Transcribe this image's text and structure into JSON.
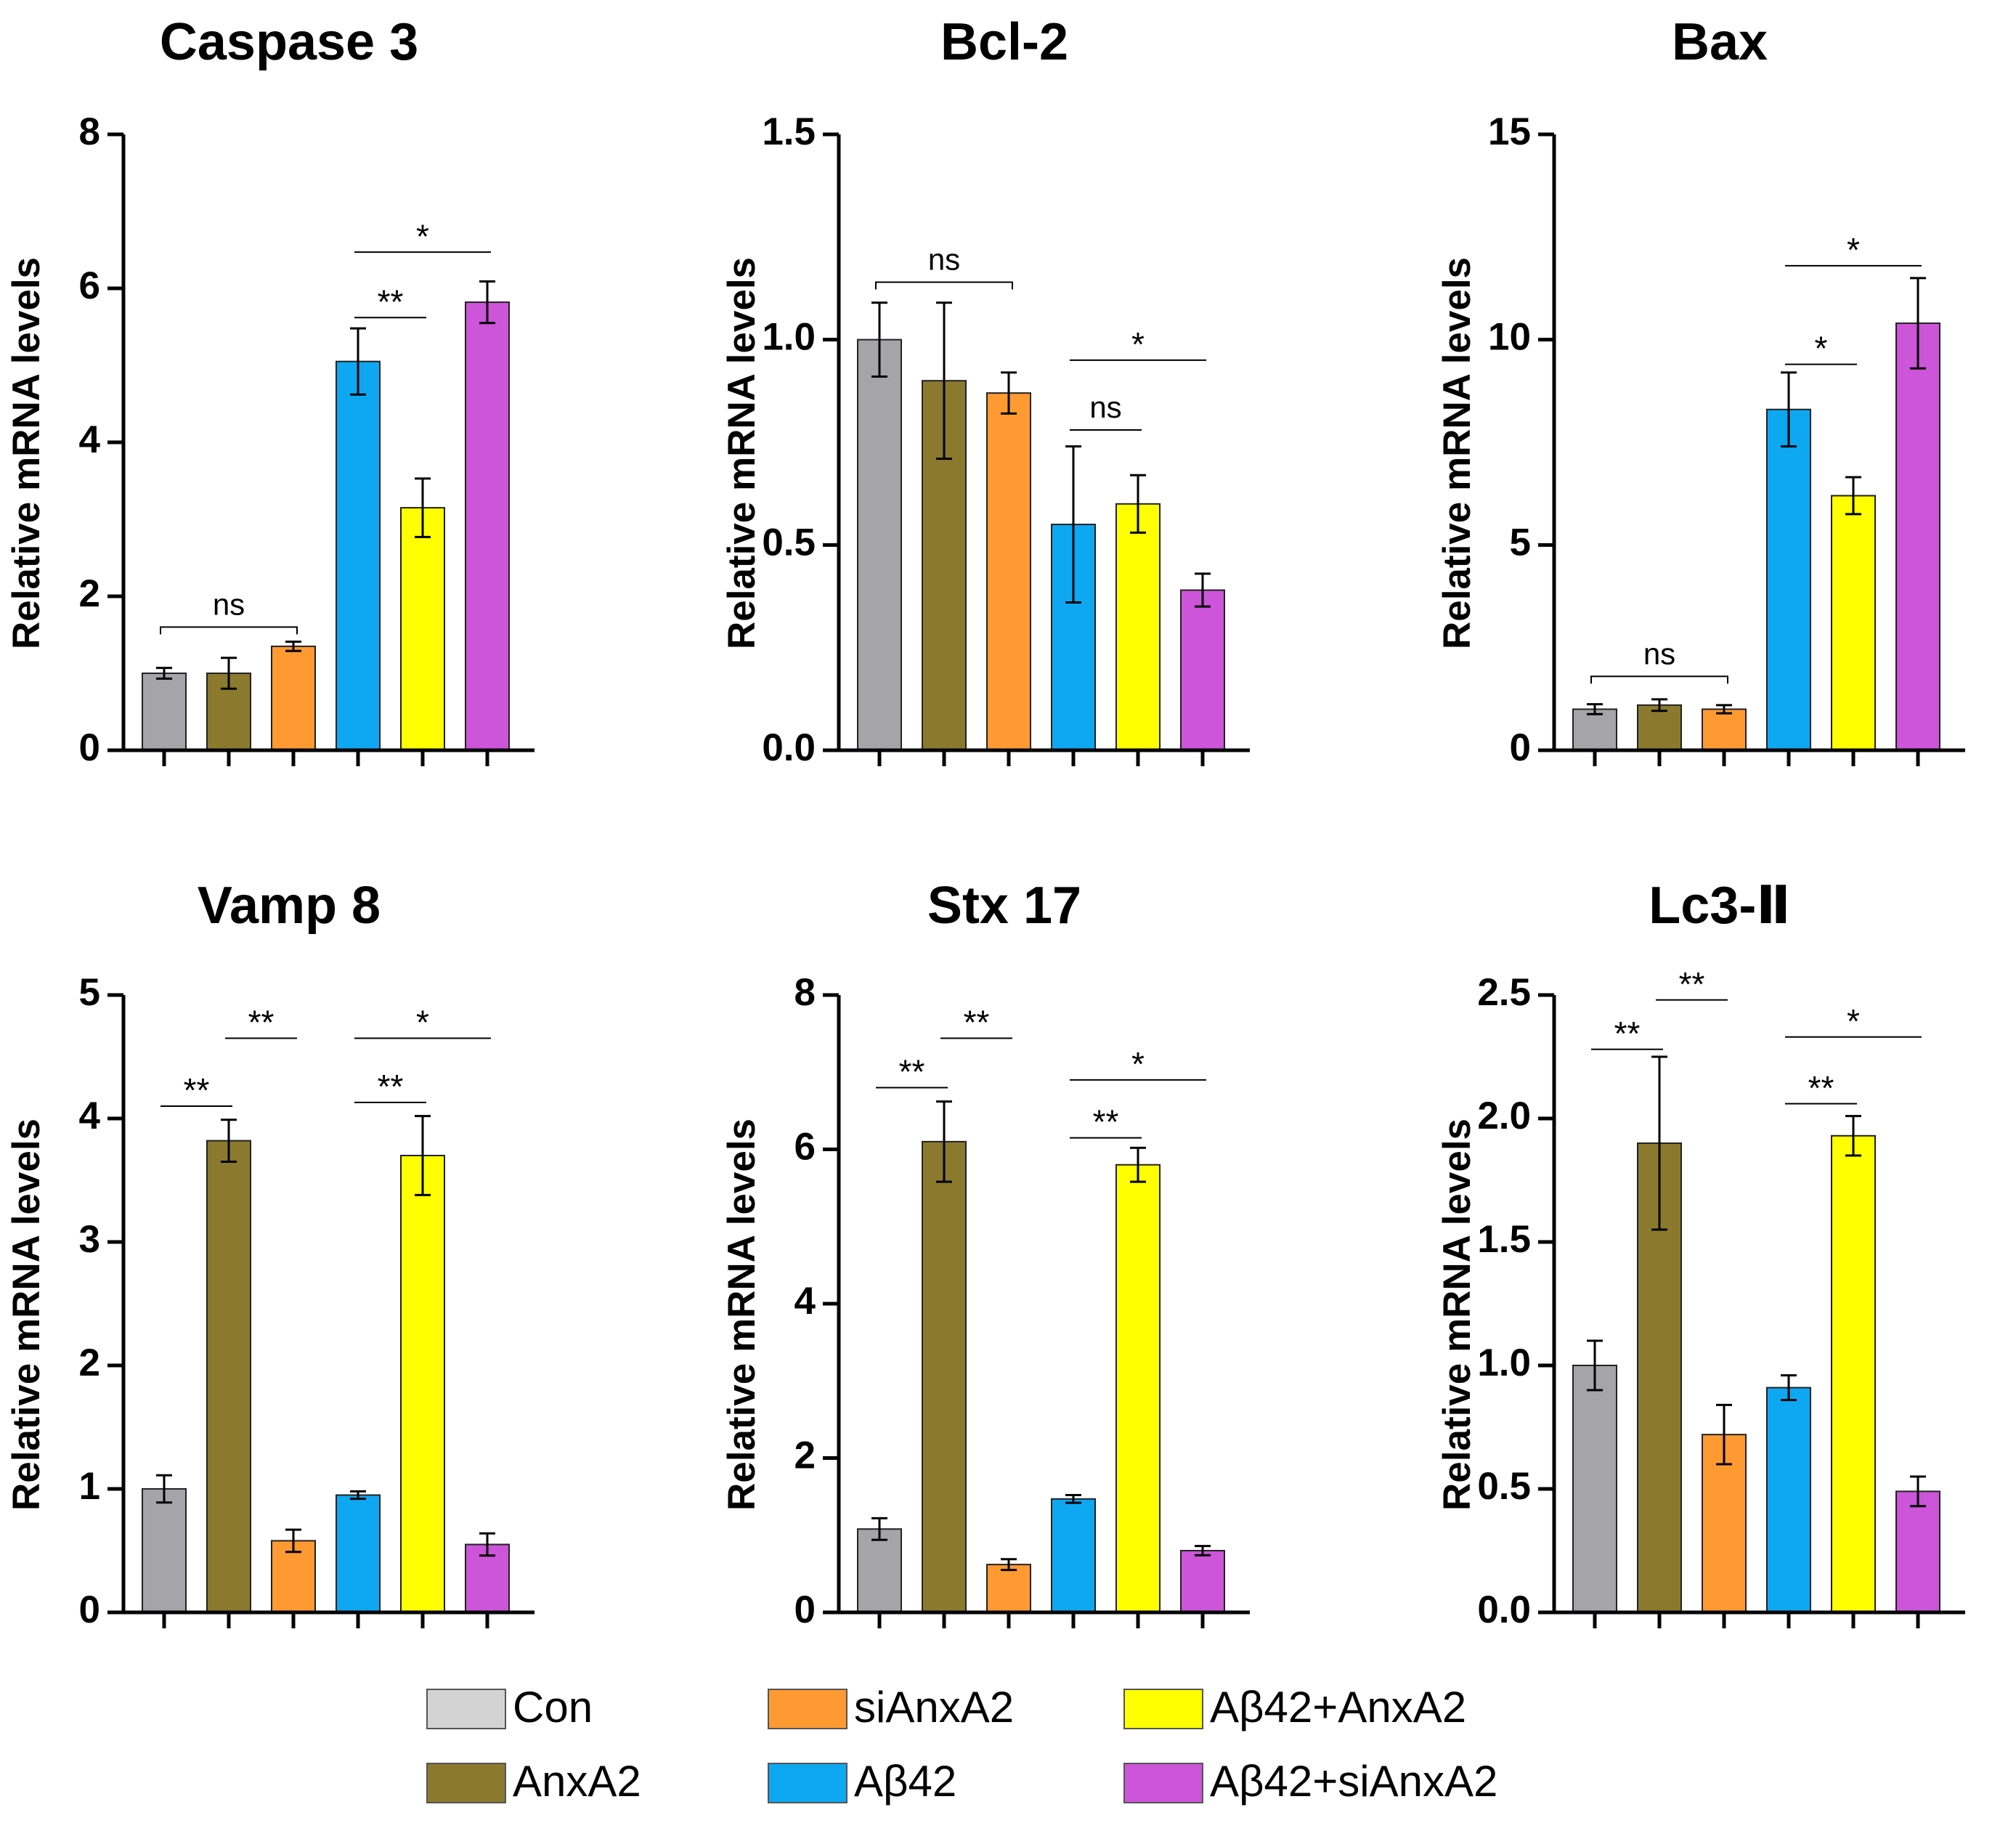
{
  "legend": [
    {
      "key": "con",
      "label": "Con",
      "color": "#d3d3d3"
    },
    {
      "key": "anxa2",
      "label": "AnxA2",
      "color": "#8b7a2e"
    },
    {
      "key": "sianxa2",
      "label": "siAnxA2",
      "color": "#ff9a33"
    },
    {
      "key": "ab42",
      "label": "Aβ42",
      "color": "#0ea8f2"
    },
    {
      "key": "ab42_anxa2",
      "label": "Aβ42+AnxA2",
      "color": "#ffff00"
    },
    {
      "key": "ab42_sianxa2",
      "label": "Aβ42+siAnxA2",
      "color": "#cc55d9"
    }
  ],
  "colors": {
    "con_panel_fill": "#a5a5a9",
    "axis": "#000000",
    "bar_stroke": "#222222"
  },
  "chart_data": [
    {
      "type": "bar",
      "title": "Caspase 3",
      "ylabel": "Relative mRNA levels",
      "xlabel": "",
      "ylim": [
        0,
        8
      ],
      "yticks": [
        0,
        2,
        4,
        6,
        8
      ],
      "tick_labels": [
        "0",
        "2",
        "4",
        "6",
        "8"
      ],
      "categories": [
        "Con",
        "AnxA2",
        "siAnxA2",
        "Aβ42",
        "Aβ42+AnxA2",
        "Aβ42+siAnxA2"
      ],
      "values": [
        1.0,
        1.0,
        1.35,
        5.05,
        3.15,
        5.82
      ],
      "errors": [
        0.07,
        0.2,
        0.06,
        0.43,
        0.38,
        0.27
      ],
      "significance": [
        {
          "from": 0,
          "to": 2,
          "label": "ns",
          "y": 1.6
        },
        {
          "from": 3,
          "to": 4,
          "label": "**",
          "y": 5.62
        },
        {
          "from": 3,
          "to": 5,
          "label": "*",
          "y": 6.47
        }
      ]
    },
    {
      "type": "bar",
      "title": "Bcl-2",
      "ylabel": "Relative mRNA levels",
      "xlabel": "",
      "ylim": [
        0,
        1.5
      ],
      "yticks": [
        0,
        0.5,
        1.0,
        1.5
      ],
      "tick_labels": [
        "0.0",
        "0.5",
        "1.0",
        "1.5"
      ],
      "categories": [
        "Con",
        "AnxA2",
        "siAnxA2",
        "Aβ42",
        "Aβ42+AnxA2",
        "Aβ42+siAnxA2"
      ],
      "values": [
        1.0,
        0.9,
        0.87,
        0.55,
        0.6,
        0.39
      ],
      "errors": [
        0.09,
        0.19,
        0.05,
        0.19,
        0.07,
        0.04
      ],
      "significance": [
        {
          "from": 0,
          "to": 2,
          "label": "ns",
          "y": 1.14
        },
        {
          "from": 3,
          "to": 4,
          "label": "ns",
          "y": 0.78
        },
        {
          "from": 3,
          "to": 5,
          "label": "*",
          "y": 0.95
        }
      ]
    },
    {
      "type": "bar",
      "title": "Bax",
      "ylabel": "Relative mRNA levels",
      "xlabel": "",
      "ylim": [
        0,
        15
      ],
      "yticks": [
        0,
        5,
        10,
        15
      ],
      "tick_labels": [
        "0",
        "5",
        "10",
        "15"
      ],
      "categories": [
        "Con",
        "AnxA2",
        "siAnxA2",
        "Aβ42",
        "Aβ42+AnxA2",
        "Aβ42+siAnxA2"
      ],
      "values": [
        1.0,
        1.1,
        1.0,
        8.3,
        6.2,
        10.4
      ],
      "errors": [
        0.12,
        0.14,
        0.1,
        0.9,
        0.45,
        1.1
      ],
      "significance": [
        {
          "from": 0,
          "to": 2,
          "label": "ns",
          "y": 1.8
        },
        {
          "from": 3,
          "to": 4,
          "label": "*",
          "y": 9.4
        },
        {
          "from": 3,
          "to": 5,
          "label": "*",
          "y": 11.8
        }
      ]
    },
    {
      "type": "bar",
      "title": "Vamp 8",
      "ylabel": "Relative mRNA levels",
      "xlabel": "",
      "ylim": [
        0,
        5
      ],
      "yticks": [
        0,
        1,
        2,
        3,
        4,
        5
      ],
      "tick_labels": [
        "0",
        "1",
        "2",
        "3",
        "4",
        "5"
      ],
      "categories": [
        "Con",
        "AnxA2",
        "siAnxA2",
        "Aβ42",
        "Aβ42+AnxA2",
        "Aβ42+siAnxA2"
      ],
      "values": [
        1.0,
        3.82,
        0.58,
        0.95,
        3.7,
        0.55
      ],
      "errors": [
        0.11,
        0.17,
        0.09,
        0.03,
        0.32,
        0.09
      ],
      "significance": [
        {
          "from": 0,
          "to": 1,
          "label": "**",
          "y": 4.1
        },
        {
          "from": 1,
          "to": 2,
          "label": "**",
          "y": 4.65
        },
        {
          "from": 3,
          "to": 4,
          "label": "**",
          "y": 4.13
        },
        {
          "from": 3,
          "to": 5,
          "label": "*",
          "y": 4.65
        }
      ]
    },
    {
      "type": "bar",
      "title": "Stx 17",
      "ylabel": "Relative mRNA levels",
      "xlabel": "",
      "ylim": [
        0,
        8
      ],
      "yticks": [
        0,
        2,
        4,
        6,
        8
      ],
      "tick_labels": [
        "0",
        "2",
        "4",
        "6",
        "8"
      ],
      "categories": [
        "Con",
        "AnxA2",
        "siAnxA2",
        "Aβ42",
        "Aβ42+AnxA2",
        "Aβ42+siAnxA2"
      ],
      "values": [
        1.08,
        6.1,
        0.62,
        1.47,
        5.8,
        0.8
      ],
      "errors": [
        0.14,
        0.52,
        0.07,
        0.05,
        0.22,
        0.06
      ],
      "significance": [
        {
          "from": 0,
          "to": 1,
          "label": "**",
          "y": 6.8
        },
        {
          "from": 1,
          "to": 2,
          "label": "**",
          "y": 7.44
        },
        {
          "from": 3,
          "to": 4,
          "label": "**",
          "y": 6.15
        },
        {
          "from": 3,
          "to": 5,
          "label": "*",
          "y": 6.9
        }
      ]
    },
    {
      "type": "bar",
      "title": "Lc3-Ⅱ",
      "ylabel": "Relative mRNA levels",
      "xlabel": "",
      "ylim": [
        0,
        2.5
      ],
      "yticks": [
        0,
        0.5,
        1.0,
        1.5,
        2.0,
        2.5
      ],
      "tick_labels": [
        "0.0",
        "0.5",
        "1.0",
        "1.5",
        "2.0",
        "2.5"
      ],
      "categories": [
        "Con",
        "AnxA2",
        "siAnxA2",
        "Aβ42",
        "Aβ42+AnxA2",
        "Aβ42+siAnxA2"
      ],
      "values": [
        1.0,
        1.9,
        0.72,
        0.91,
        1.93,
        0.49
      ],
      "errors": [
        0.1,
        0.35,
        0.12,
        0.05,
        0.08,
        0.06
      ],
      "significance": [
        {
          "from": 0,
          "to": 1,
          "label": "**",
          "y": 2.28
        },
        {
          "from": 1,
          "to": 2,
          "label": "**",
          "y": 2.48
        },
        {
          "from": 3,
          "to": 4,
          "label": "**",
          "y": 2.06
        },
        {
          "from": 3,
          "to": 5,
          "label": "*",
          "y": 2.33
        }
      ]
    }
  ]
}
